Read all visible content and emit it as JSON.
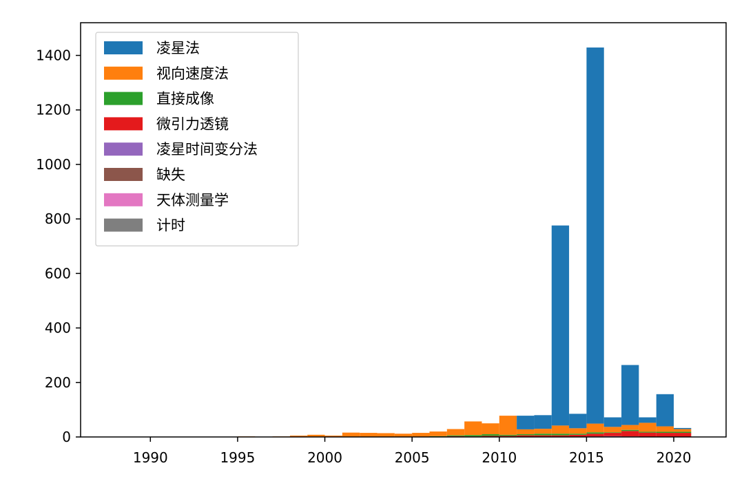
{
  "chart_data": {
    "type": "bar",
    "stacked": true,
    "legend": "top-left",
    "grid": false,
    "xlim": [
      1986,
      2023
    ],
    "ylim": [
      0,
      1520
    ],
    "xticks": [
      "1990",
      "1995",
      "2000",
      "2005",
      "2010",
      "2015",
      "2020"
    ],
    "yticks": [
      "0",
      "200",
      "400",
      "600",
      "800",
      "1000",
      "1200",
      "1400"
    ],
    "bin_start": 1989,
    "bin_width": 1,
    "series": [
      {
        "name": "计时",
        "color": "#7f7f7f",
        "values": [
          0,
          0,
          0,
          0,
          0,
          0,
          0,
          0,
          0,
          0,
          0,
          0,
          0,
          0,
          0,
          0,
          0,
          0,
          0,
          0,
          0,
          0,
          0,
          0,
          0,
          0,
          0,
          0,
          0,
          0,
          0,
          0,
          0
        ]
      },
      {
        "name": "天体测量学",
        "color": "#e377c2",
        "values": [
          0,
          0,
          0,
          0,
          0,
          0,
          0,
          0,
          0,
          0,
          0,
          0,
          0,
          0,
          0,
          0,
          0,
          0,
          0,
          0,
          0,
          0,
          0,
          0,
          0,
          0,
          0,
          0,
          0,
          0,
          0,
          0,
          0
        ]
      },
      {
        "name": "缺失",
        "color": "#8c564b",
        "values": [
          0,
          0,
          0,
          0,
          0,
          0,
          0,
          0,
          0,
          0,
          0,
          0,
          0,
          0,
          0,
          0,
          0,
          0,
          0,
          0,
          0,
          0,
          0,
          0,
          0,
          0,
          0,
          0,
          0,
          0,
          0,
          0,
          0
        ]
      },
      {
        "name": "凌星时间变分法",
        "color": "#9467bd",
        "values": [
          0,
          0,
          0,
          0,
          0,
          0,
          0,
          0,
          0,
          0,
          0,
          0,
          0,
          0,
          0,
          0,
          0,
          0,
          0,
          0,
          0,
          0,
          0,
          0,
          0,
          1,
          2,
          3,
          2,
          1,
          1,
          1,
          0
        ]
      },
      {
        "name": "微引力透镜",
        "color": "#e41a1c",
        "values": [
          0,
          0,
          0,
          0,
          0,
          0,
          0,
          0,
          0,
          0,
          0,
          0,
          0,
          0,
          0,
          0,
          0,
          1,
          3,
          2,
          4,
          4,
          6,
          6,
          6,
          7,
          10,
          12,
          20,
          15,
          14,
          14,
          0
        ]
      },
      {
        "name": "直接成像",
        "color": "#2ca02c",
        "values": [
          0,
          0,
          0,
          0,
          0,
          0,
          0,
          0,
          0,
          0,
          0,
          0,
          0,
          0,
          0,
          0,
          0,
          2,
          3,
          5,
          6,
          4,
          4,
          6,
          6,
          4,
          5,
          2,
          4,
          3,
          4,
          4,
          0
        ]
      },
      {
        "name": "视向速度法",
        "color": "#ff7f0e",
        "values": [
          0,
          0,
          0,
          0,
          0,
          0,
          2,
          0,
          2,
          5,
          8,
          5,
          16,
          15,
          14,
          12,
          15,
          17,
          23,
          50,
          40,
          70,
          18,
          18,
          30,
          20,
          32,
          20,
          18,
          33,
          20,
          10,
          0
        ]
      },
      {
        "name": "凌星法",
        "color": "#1f77b4",
        "values": [
          0,
          0,
          0,
          0,
          0,
          0,
          0,
          0,
          0,
          0,
          0,
          0,
          0,
          0,
          0,
          0,
          0,
          0,
          0,
          0,
          0,
          0,
          50,
          50,
          734,
          53,
          1380,
          35,
          220,
          20,
          118,
          4,
          0
        ]
      }
    ],
    "legend_order": [
      "凌星法",
      "视向速度法",
      "直接成像",
      "微引力透镜",
      "凌星时间变分法",
      "缺失",
      "天体测量学",
      "计时"
    ]
  }
}
